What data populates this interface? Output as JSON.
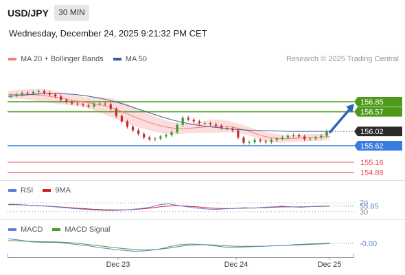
{
  "header": {
    "symbol": "USD/JPY",
    "interval": "30 MIN",
    "datetime": "Wednesday, December 24, 2025 9:21:32 PM CET"
  },
  "legend_main": [
    {
      "label": "MA 20 + Bollinger Bands",
      "color": "#f08080"
    },
    {
      "label": "MA 50",
      "color": "#3b5b9a"
    }
  ],
  "credit": "Research © 2025 Trading Central",
  "legend_rsi": [
    {
      "label": "RSI",
      "color": "#5b7fd6"
    },
    {
      "label": "9MA",
      "color": "#d62020"
    }
  ],
  "legend_macd": [
    {
      "label": "MACD",
      "color": "#5b7fd6"
    },
    {
      "label": "MACD Signal",
      "color": "#4f9a1a"
    }
  ],
  "colors": {
    "up": "#2e9a2e",
    "down": "#c82828",
    "resistance": "#4f9a1a",
    "support": "#3a7be0",
    "target": "#e64858",
    "current": "#2b2b2b",
    "arrow": "#2f63b8",
    "band": "#fbd4d4"
  },
  "chart_data": [
    {
      "type": "candlestick",
      "title": "USD/JPY",
      "x_labels": [
        "Dec 23",
        "Dec 24",
        "Dec 25"
      ],
      "ylim": [
        154.8,
        157.2
      ],
      "current_price": 156.02,
      "levels": [
        {
          "value": 156.85,
          "label": "156.85",
          "role": "resistance"
        },
        {
          "value": 156.57,
          "label": "156.57",
          "role": "resistance"
        },
        {
          "value": 156.02,
          "label": "156.02",
          "role": "current"
        },
        {
          "value": 155.62,
          "label": "155.62",
          "role": "support"
        },
        {
          "value": 155.16,
          "label": "155.16",
          "role": "target"
        },
        {
          "value": 154.88,
          "label": "154.88",
          "role": "target"
        }
      ],
      "close_series": [
        157.02,
        157.05,
        157.1,
        157.08,
        157.12,
        157.15,
        157.1,
        157.05,
        157.0,
        156.9,
        156.85,
        156.8,
        156.78,
        156.75,
        156.72,
        156.78,
        156.8,
        156.78,
        156.65,
        156.45,
        156.3,
        156.15,
        156.05,
        155.95,
        155.85,
        155.8,
        155.82,
        155.88,
        155.92,
        156.0,
        156.2,
        156.4,
        156.35,
        156.3,
        156.25,
        156.25,
        156.22,
        156.18,
        156.12,
        156.1,
        156.05,
        155.85,
        155.7,
        155.72,
        155.78,
        155.75,
        155.72,
        155.78,
        155.82,
        155.85,
        155.9,
        155.92,
        155.88,
        155.8,
        155.82,
        155.85,
        155.9,
        156.02
      ],
      "ma20": [
        157.05,
        157.06,
        157.06,
        157.05,
        157.03,
        157.0,
        156.96,
        156.92,
        156.88,
        156.84,
        156.8,
        156.76,
        156.7,
        156.62,
        156.52,
        156.42,
        156.33,
        156.25,
        156.18,
        156.13,
        156.1,
        156.1,
        156.12,
        156.14,
        156.16,
        156.17,
        156.16,
        156.12,
        156.06,
        155.98,
        155.9,
        155.85,
        155.82,
        155.82,
        155.83,
        155.84,
        155.85,
        155.86,
        155.88
      ],
      "ma50": [
        157.0,
        157.03,
        157.06,
        157.08,
        157.08,
        157.06,
        157.02,
        156.96,
        156.88,
        156.78,
        156.66,
        156.54,
        156.42,
        156.32,
        156.24,
        156.18,
        156.14,
        156.1,
        156.07,
        156.05,
        156.04,
        156.03,
        156.02,
        156.02,
        156.02,
        156.02
      ]
    },
    {
      "type": "line",
      "title": "RSI",
      "y_labels": [
        "70",
        "30"
      ],
      "current_value": 55.85,
      "ylim": [
        20,
        80
      ],
      "series": [
        {
          "name": "RSI",
          "values": [
            64,
            63,
            60,
            57,
            55,
            52,
            48,
            44,
            41,
            38,
            36,
            35,
            37,
            40,
            44,
            50,
            62,
            66,
            58,
            52,
            46,
            42,
            40,
            43,
            45,
            48,
            46,
            50,
            52,
            55,
            52,
            50,
            53,
            55,
            56
          ]
        },
        {
          "name": "9MA",
          "values": [
            62,
            62,
            60,
            58,
            56,
            53,
            50,
            47,
            44,
            41,
            39,
            38,
            38,
            39,
            42,
            46,
            52,
            56,
            57,
            55,
            52,
            48,
            45,
            44,
            45,
            46,
            47,
            48,
            50,
            52,
            52,
            52,
            53,
            54,
            55
          ]
        }
      ]
    },
    {
      "type": "line",
      "title": "MACD",
      "current_value": -0.0,
      "current_label": "-0.00",
      "ylim": [
        -0.25,
        0.15
      ],
      "series": [
        {
          "name": "MACD",
          "values": [
            0.1,
            0.07,
            0.03,
            0.02,
            0.02,
            0.0,
            -0.03,
            -0.06,
            -0.1,
            -0.13,
            -0.16,
            -0.18,
            -0.17,
            -0.14,
            -0.08,
            -0.03,
            -0.02,
            -0.03,
            -0.06,
            -0.09,
            -0.09,
            -0.08,
            -0.07,
            -0.06,
            -0.05,
            -0.03,
            -0.02,
            -0.01,
            0.0
          ]
        },
        {
          "name": "MACD Signal",
          "values": [
            0.06,
            0.05,
            0.04,
            0.03,
            0.03,
            0.02,
            0.0,
            -0.03,
            -0.06,
            -0.09,
            -0.12,
            -0.14,
            -0.15,
            -0.14,
            -0.11,
            -0.07,
            -0.04,
            -0.03,
            -0.04,
            -0.06,
            -0.07,
            -0.07,
            -0.07,
            -0.06,
            -0.05,
            -0.04,
            -0.03,
            -0.02,
            -0.01
          ]
        }
      ]
    }
  ]
}
